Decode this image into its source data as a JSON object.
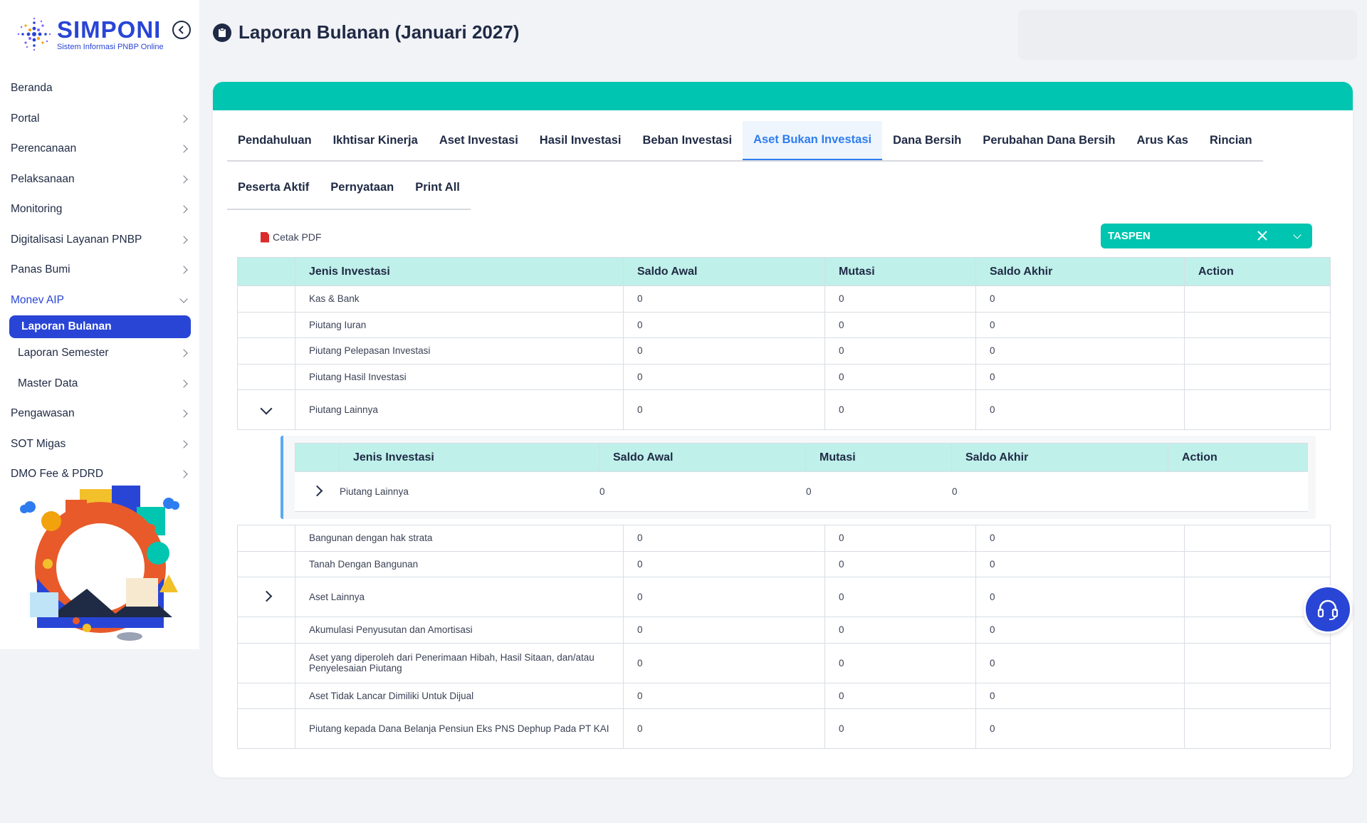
{
  "brand": {
    "title": "SIMPONI",
    "subtitle": "Sistem Informasi PNBP Online"
  },
  "sidebar": {
    "items": [
      {
        "label": "Beranda",
        "has_chevron": false
      },
      {
        "label": "Portal",
        "has_chevron": true
      },
      {
        "label": "Perencanaan",
        "has_chevron": true
      },
      {
        "label": "Pelaksanaan",
        "has_chevron": true
      },
      {
        "label": "Monitoring",
        "has_chevron": true
      },
      {
        "label": "Digitalisasi Layanan PNBP",
        "has_chevron": true
      },
      {
        "label": "Panas Bumi",
        "has_chevron": true
      }
    ],
    "active_parent": {
      "label": "Monev AIP"
    },
    "sub_items": [
      {
        "label": "Laporan Bulanan",
        "selected": true
      },
      {
        "label": "Laporan Semester"
      },
      {
        "label": "Master Data"
      }
    ],
    "items_after": [
      {
        "label": "Pengawasan"
      },
      {
        "label": "SOT Migas"
      },
      {
        "label": "DMO Fee & PDRD"
      }
    ]
  },
  "header": {
    "title": "Laporan Bulanan (Januari 2027)"
  },
  "tabs_row1": [
    "Pendahuluan",
    "Ikhtisar Kinerja",
    "Aset Investasi",
    "Hasil Investasi",
    "Beban Investasi",
    "Aset Bukan Investasi",
    "Dana Bersih",
    "Perubahan Dana Bersih",
    "Arus Kas",
    "Rincian"
  ],
  "tabs_row2": [
    "Peserta Aktif",
    "Pernyataan",
    "Print All"
  ],
  "active_tab": "Aset Bukan Investasi",
  "toolbar": {
    "cetak_label": "Cetak PDF",
    "select_value": "TASPEN"
  },
  "table": {
    "columns": [
      "Jenis Investasi",
      "Saldo Awal",
      "Mutasi",
      "Saldo Akhir",
      "Action"
    ],
    "rows_before": [
      {
        "name": "Kas & Bank",
        "awal": "0",
        "mutasi": "0",
        "akhir": "0"
      },
      {
        "name": "Piutang Iuran",
        "awal": "0",
        "mutasi": "0",
        "akhir": "0"
      },
      {
        "name": "Piutang Pelepasan Investasi",
        "awal": "0",
        "mutasi": "0",
        "akhir": "0"
      },
      {
        "name": "Piutang Hasil Investasi",
        "awal": "0",
        "mutasi": "0",
        "akhir": "0"
      }
    ],
    "expanded_row": {
      "name": "Piutang Lainnya",
      "awal": "0",
      "mutasi": "0",
      "akhir": "0"
    },
    "nested": {
      "columns": [
        "Jenis Investasi",
        "Saldo Awal",
        "Mutasi",
        "Saldo Akhir",
        "Action"
      ],
      "row": {
        "name": "Piutang Lainnya",
        "awal": "0",
        "mutasi": "0",
        "akhir": "0"
      }
    },
    "rows_after": [
      {
        "name": "Bangunan dengan hak strata",
        "awal": "0",
        "mutasi": "0",
        "akhir": "0"
      },
      {
        "name": "Tanah Dengan Bangunan",
        "awal": "0",
        "mutasi": "0",
        "akhir": "0"
      },
      {
        "name": "Aset Lainnya",
        "awal": "0",
        "mutasi": "0",
        "akhir": "0",
        "expandable": true
      },
      {
        "name": "Akumulasi Penyusutan dan Amortisasi",
        "awal": "0",
        "mutasi": "0",
        "akhir": "0"
      },
      {
        "name": "Aset yang diperoleh dari Penerimaan Hibah, Hasil Sitaan, dan/atau Penyelesaian Piutang",
        "awal": "0",
        "mutasi": "0",
        "akhir": "0",
        "tall": true
      },
      {
        "name": "Aset Tidak Lancar Dimiliki Untuk Dijual",
        "awal": "0",
        "mutasi": "0",
        "akhir": "0"
      },
      {
        "name": "Piutang kepada Dana Belanja Pensiun Eks PNS Dephup Pada PT KAI",
        "awal": "0",
        "mutasi": "0",
        "akhir": "0",
        "tall": true
      }
    ]
  },
  "colors": {
    "accent": "#2945d6",
    "teal": "#00c5b0",
    "header_bg": "#bff0ea",
    "active_tab": "#2e7df0"
  },
  "icons": {
    "collapse": "chevron-left-circle-icon",
    "title": "clipboard-icon",
    "pdf": "pdf-icon",
    "support": "headset-icon"
  }
}
